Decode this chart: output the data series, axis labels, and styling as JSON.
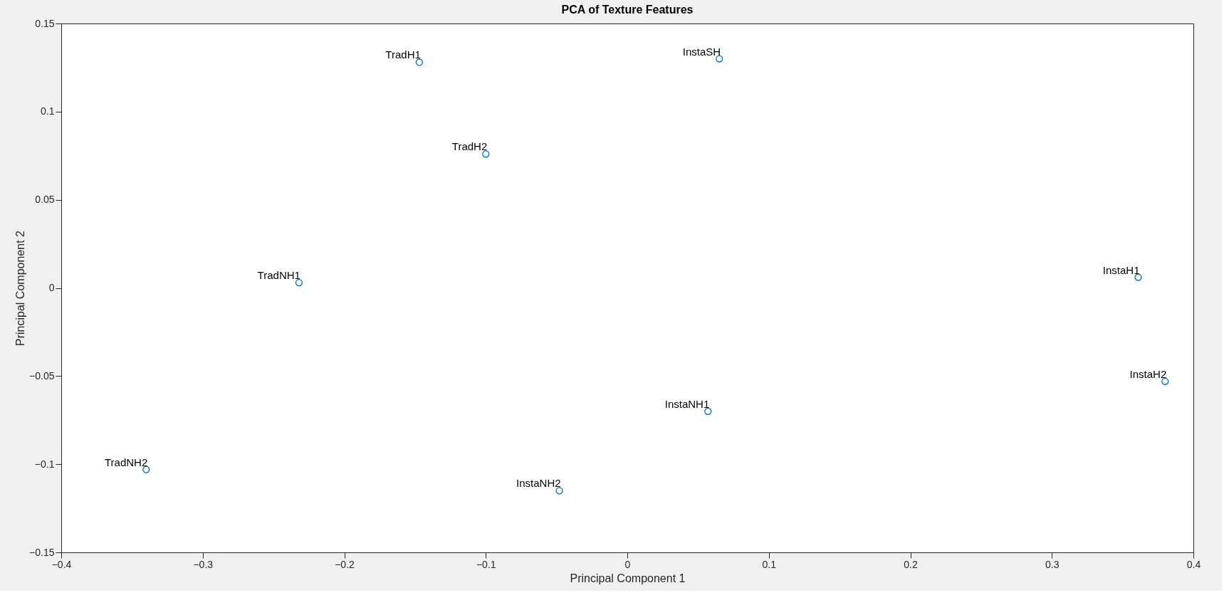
{
  "chart_data": {
    "type": "scatter",
    "title": "PCA of Texture Features",
    "xlabel": "Principal Component 1",
    "ylabel": "Principal Component 2",
    "x": [
      -0.147,
      0.065,
      -0.1,
      -0.232,
      0.361,
      0.38,
      0.057,
      -0.34,
      -0.048
    ],
    "series": [
      {
        "color": "#0072bd",
        "values": [
          0.128,
          0.13,
          0.076,
          0.003,
          0.006,
          -0.053,
          -0.07,
          -0.103,
          -0.115
        ]
      }
    ],
    "annotations": [
      {
        "text": "TradH1",
        "x": -0.147,
        "y": 0.128
      },
      {
        "text": "InstaSH",
        "x": 0.065,
        "y": 0.13
      },
      {
        "text": "TradH2",
        "x": -0.1,
        "y": 0.076
      },
      {
        "text": "TradNH1",
        "x": -0.232,
        "y": 0.003
      },
      {
        "text": "InstaH1",
        "x": 0.361,
        "y": 0.006
      },
      {
        "text": "InstaH2",
        "x": 0.38,
        "y": -0.053
      },
      {
        "text": "InstaNH1",
        "x": 0.057,
        "y": -0.07
      },
      {
        "text": "TradNH2",
        "x": -0.34,
        "y": -0.103
      },
      {
        "text": "InstaNH2",
        "x": -0.048,
        "y": -0.115
      }
    ],
    "xlim": [
      -0.4,
      0.4
    ],
    "xticks": [
      -0.4,
      -0.3,
      -0.2,
      -0.1,
      0,
      0.1,
      0.2,
      0.3,
      0.4
    ],
    "ylim": [
      -0.15,
      0.15
    ],
    "yticks": [
      -0.15,
      -0.1,
      -0.05,
      0,
      0.05,
      0.1,
      0.15
    ],
    "grid": false,
    "legend": false,
    "marker": "circle"
  }
}
